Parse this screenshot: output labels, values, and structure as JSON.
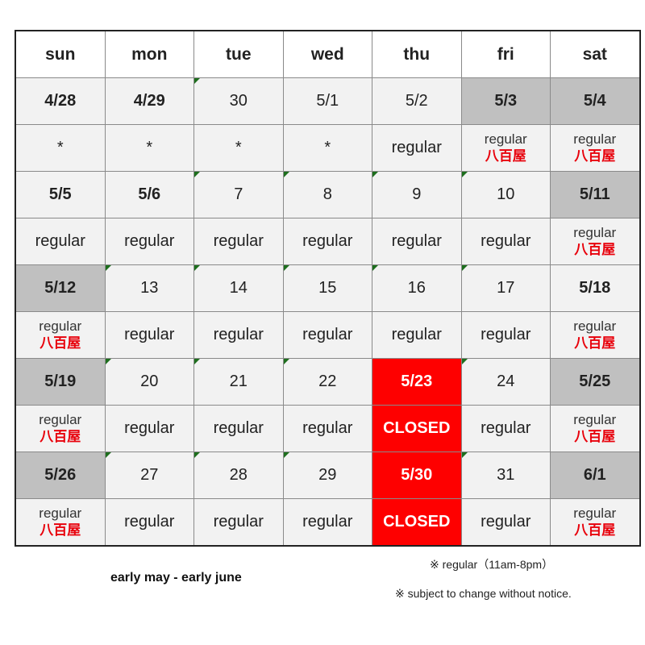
{
  "headers": [
    "sun",
    "mon",
    "tue",
    "wed",
    "thu",
    "fri",
    "sat"
  ],
  "weeks": [
    {
      "dates": [
        "4/28",
        "4/29",
        "30",
        "5/1",
        "5/2",
        "5/3",
        "5/4"
      ],
      "statuses": [
        "*",
        "*",
        "*",
        "*",
        "regular",
        "regular",
        "regular"
      ],
      "status_sub": [
        "",
        "",
        "",
        "",
        "",
        "八百屋",
        "八百屋"
      ]
    },
    {
      "dates": [
        "5/5",
        "5/6",
        "7",
        "8",
        "9",
        "10",
        "5/11"
      ],
      "statuses": [
        "regular",
        "regular",
        "regular",
        "regular",
        "regular",
        "regular",
        "regular"
      ],
      "status_sub": [
        "",
        "",
        "",
        "",
        "",
        "",
        "八百屋"
      ]
    },
    {
      "dates": [
        "5/12",
        "13",
        "14",
        "15",
        "16",
        "17",
        "5/18"
      ],
      "statuses": [
        "regular",
        "regular",
        "regular",
        "regular",
        "regular",
        "regular",
        "regular"
      ],
      "status_sub": [
        "八百屋",
        "",
        "",
        "",
        "",
        "",
        "八百屋"
      ]
    },
    {
      "dates": [
        "5/19",
        "20",
        "21",
        "22",
        "5/23",
        "24",
        "5/25"
      ],
      "statuses": [
        "regular",
        "regular",
        "regular",
        "regular",
        "CLOSED",
        "regular",
        "regular"
      ],
      "status_sub": [
        "八百屋",
        "",
        "",
        "",
        "",
        "",
        "八百屋"
      ]
    },
    {
      "dates": [
        "5/26",
        "27",
        "28",
        "29",
        "5/30",
        "31",
        "6/1"
      ],
      "statuses": [
        "regular",
        "regular",
        "regular",
        "regular",
        "CLOSED",
        "regular",
        "regular"
      ],
      "status_sub": [
        "八百屋",
        "",
        "",
        "",
        "",
        "",
        "八百屋"
      ]
    }
  ],
  "notes": {
    "hours": "※ regular（11am-8pm）",
    "caption": "early may - early june",
    "disclaimer": "※ subject to change without notice."
  },
  "colors": {
    "holiday_text": "#e8000b",
    "closed_bg": "#fe0000",
    "weekend_bg": "#c0c0c0",
    "cell_bg": "#f2f2f2"
  }
}
